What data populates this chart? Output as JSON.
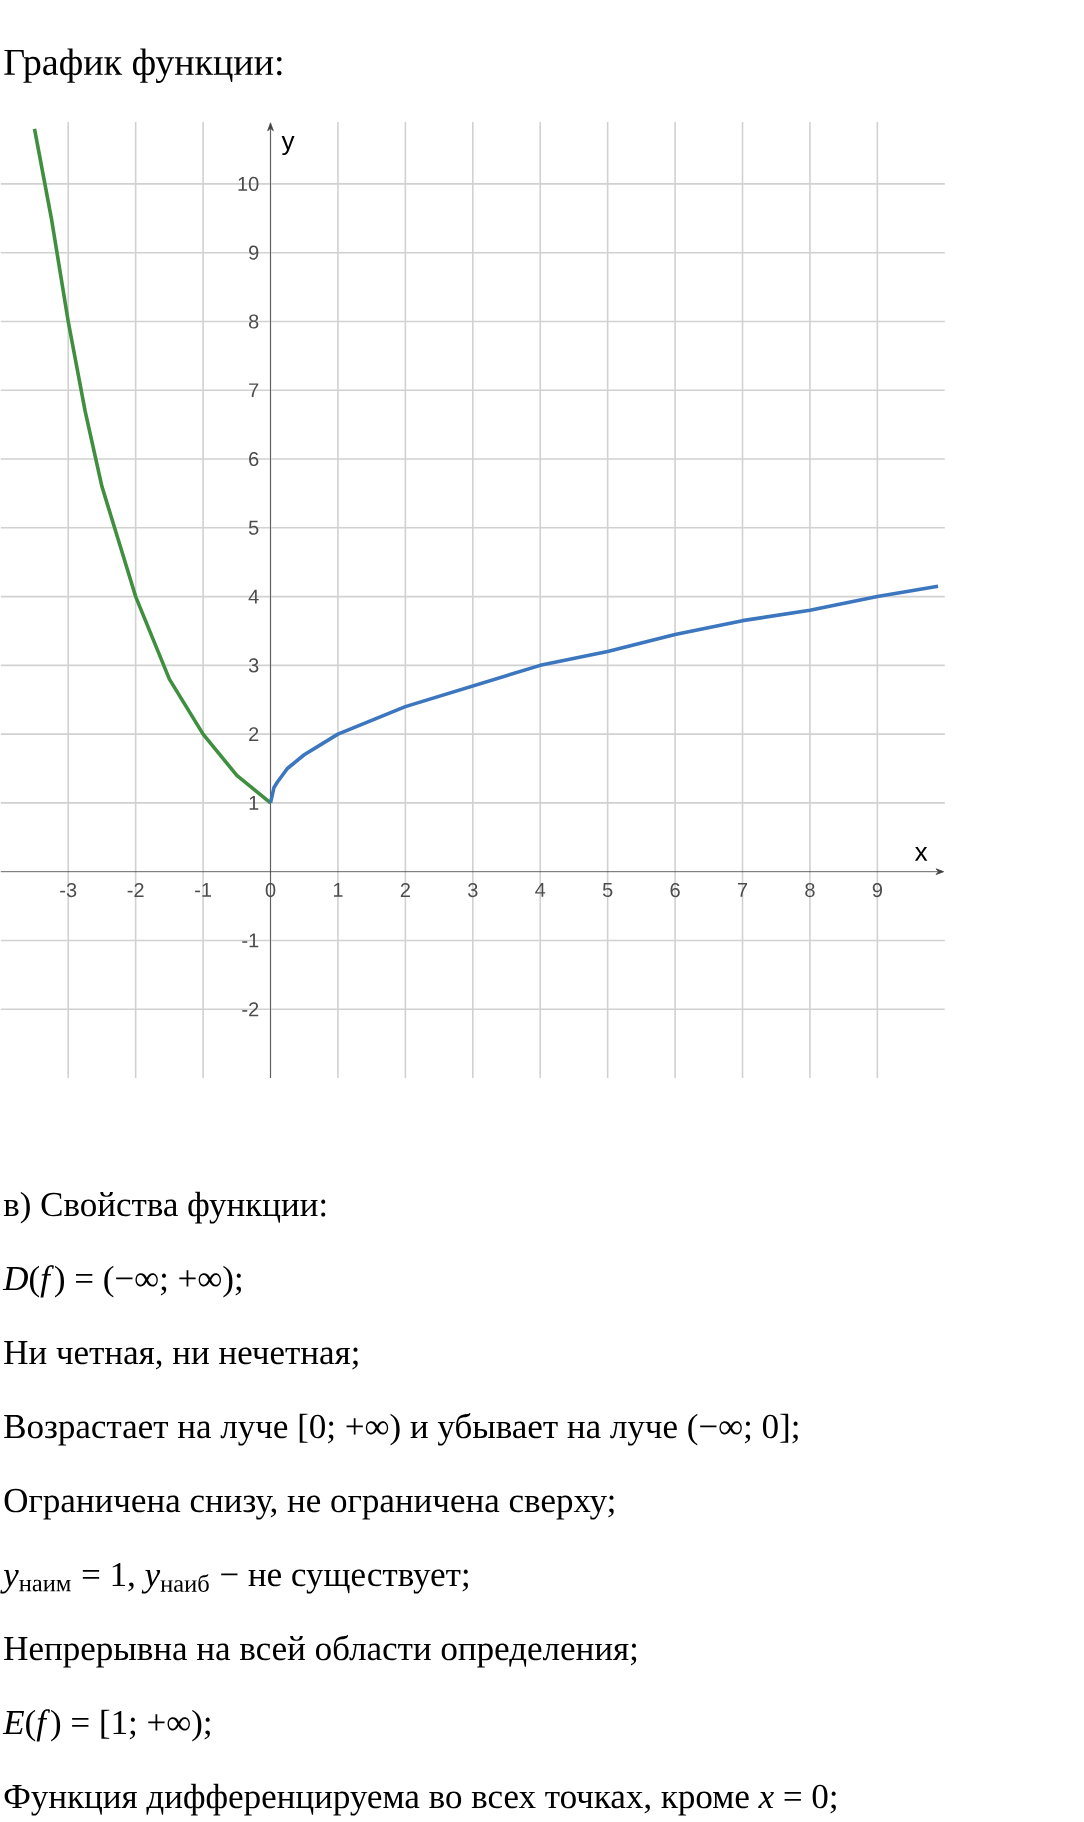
{
  "chart_data": {
    "type": "line",
    "title": "График функции:",
    "xlabel": "x",
    "ylabel": "y",
    "xlim": [
      -4,
      10
    ],
    "ylim": [
      -3,
      10.9
    ],
    "xticks": [
      -3,
      -2,
      -1,
      0,
      1,
      2,
      3,
      4,
      5,
      6,
      7,
      8,
      9
    ],
    "yticks": [
      -2,
      -1,
      1,
      2,
      3,
      4,
      5,
      6,
      7,
      8,
      9,
      10
    ],
    "grid": true,
    "marker": "none",
    "line_style": "solid",
    "series": [
      {
        "color": "#3f8f3f",
        "x": [
          -3.5,
          -3.25,
          -3,
          -2.75,
          -2.5,
          -2.25,
          -2,
          -1.75,
          -1.5,
          -1.25,
          -1,
          -0.75,
          -0.5,
          -0.25,
          0
        ],
        "values": [
          10.8,
          9.5,
          8,
          6.7,
          5.6,
          4.8,
          4,
          3.4,
          2.8,
          2.4,
          2,
          1.7,
          1.4,
          1.2,
          1
        ]
      },
      {
        "color": "#3b76bf",
        "x": [
          0,
          0.05,
          0.1,
          0.25,
          0.5,
          1,
          1.5,
          2,
          3,
          4,
          5,
          6,
          7,
          8,
          9,
          9.9
        ],
        "values": [
          1,
          1.22,
          1.3,
          1.5,
          1.7,
          2,
          2.2,
          2.4,
          2.7,
          3,
          3.2,
          3.45,
          3.65,
          3.8,
          4,
          4.15
        ]
      }
    ],
    "annotations": [
      "в) Свойства функции:",
      "*D*(*f*) = (−∞; +∞);",
      "Ни четная, ни нечетная;",
      "Возрастает на луче [0; +∞) и убывает на луче (−∞; 0];",
      "Ограничена снизу, не ограничена сверху;",
      "*y*$_{наим}$ = 1,  *y*$_{наиб}$ − не существует;",
      "Непрерывна на всей области определения;",
      "*E*(*f*) = [1; +∞);",
      "Функция дифференцируема во всех точках, кроме *x* = 0;"
    ]
  }
}
